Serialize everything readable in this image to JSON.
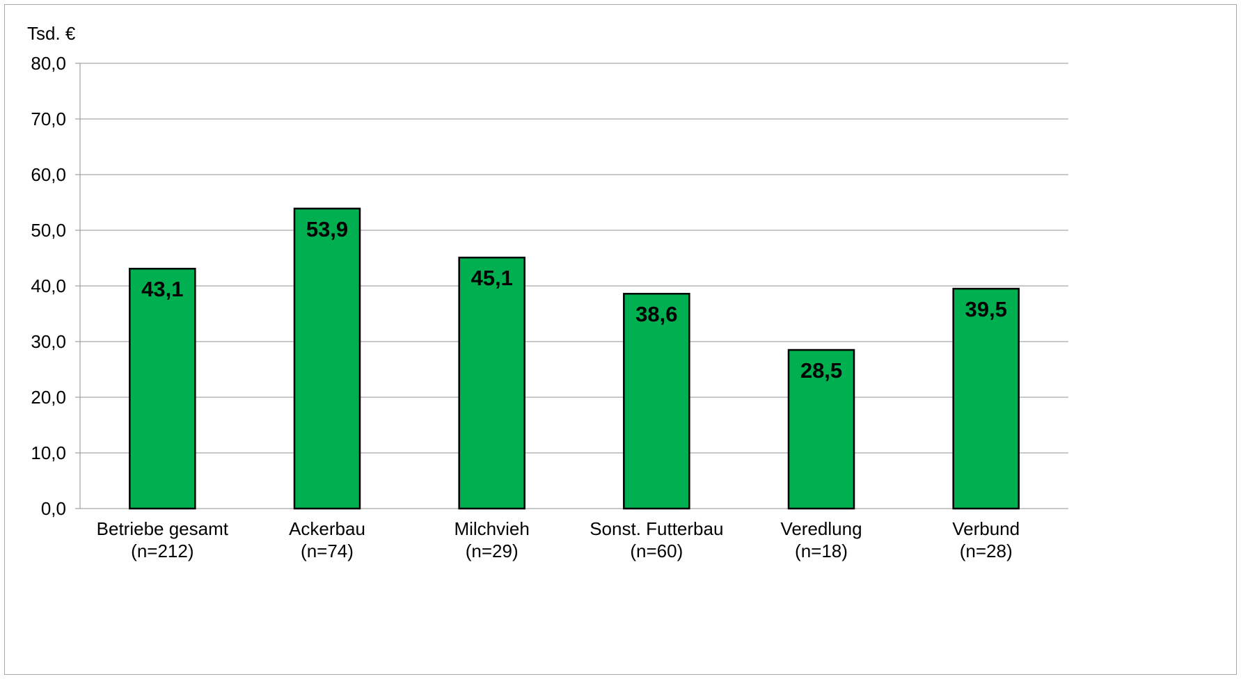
{
  "chart_data": {
    "type": "bar",
    "unit_label": "Tsd. €",
    "categories": [
      [
        "Betriebe gesamt",
        "(n=212)"
      ],
      [
        "Ackerbau",
        "(n=74)"
      ],
      [
        "Milchvieh",
        "(n=29)"
      ],
      [
        "Sonst. Futterbau",
        "(n=60)"
      ],
      [
        "Veredlung",
        "(n=18)"
      ],
      [
        "Verbund",
        "(n=28)"
      ]
    ],
    "values": [
      43.1,
      53.9,
      45.1,
      38.6,
      28.5,
      39.5
    ],
    "value_labels": [
      "43,1",
      "53,9",
      "45,1",
      "38,6",
      "28,5",
      "39,5"
    ],
    "ylim": [
      0,
      80
    ],
    "yticks": [
      0,
      10,
      20,
      30,
      40,
      50,
      60,
      70,
      80
    ],
    "ytick_labels": [
      "0,0",
      "10,0",
      "20,0",
      "30,0",
      "40,0",
      "50,0",
      "60,0",
      "70,0",
      "80,0"
    ],
    "grid": true,
    "legend": "none",
    "colors": {
      "bar_fill": "#00b050",
      "bar_stroke": "#000000",
      "grid": "#a6a6a6",
      "axis": "#a6a6a6"
    }
  }
}
